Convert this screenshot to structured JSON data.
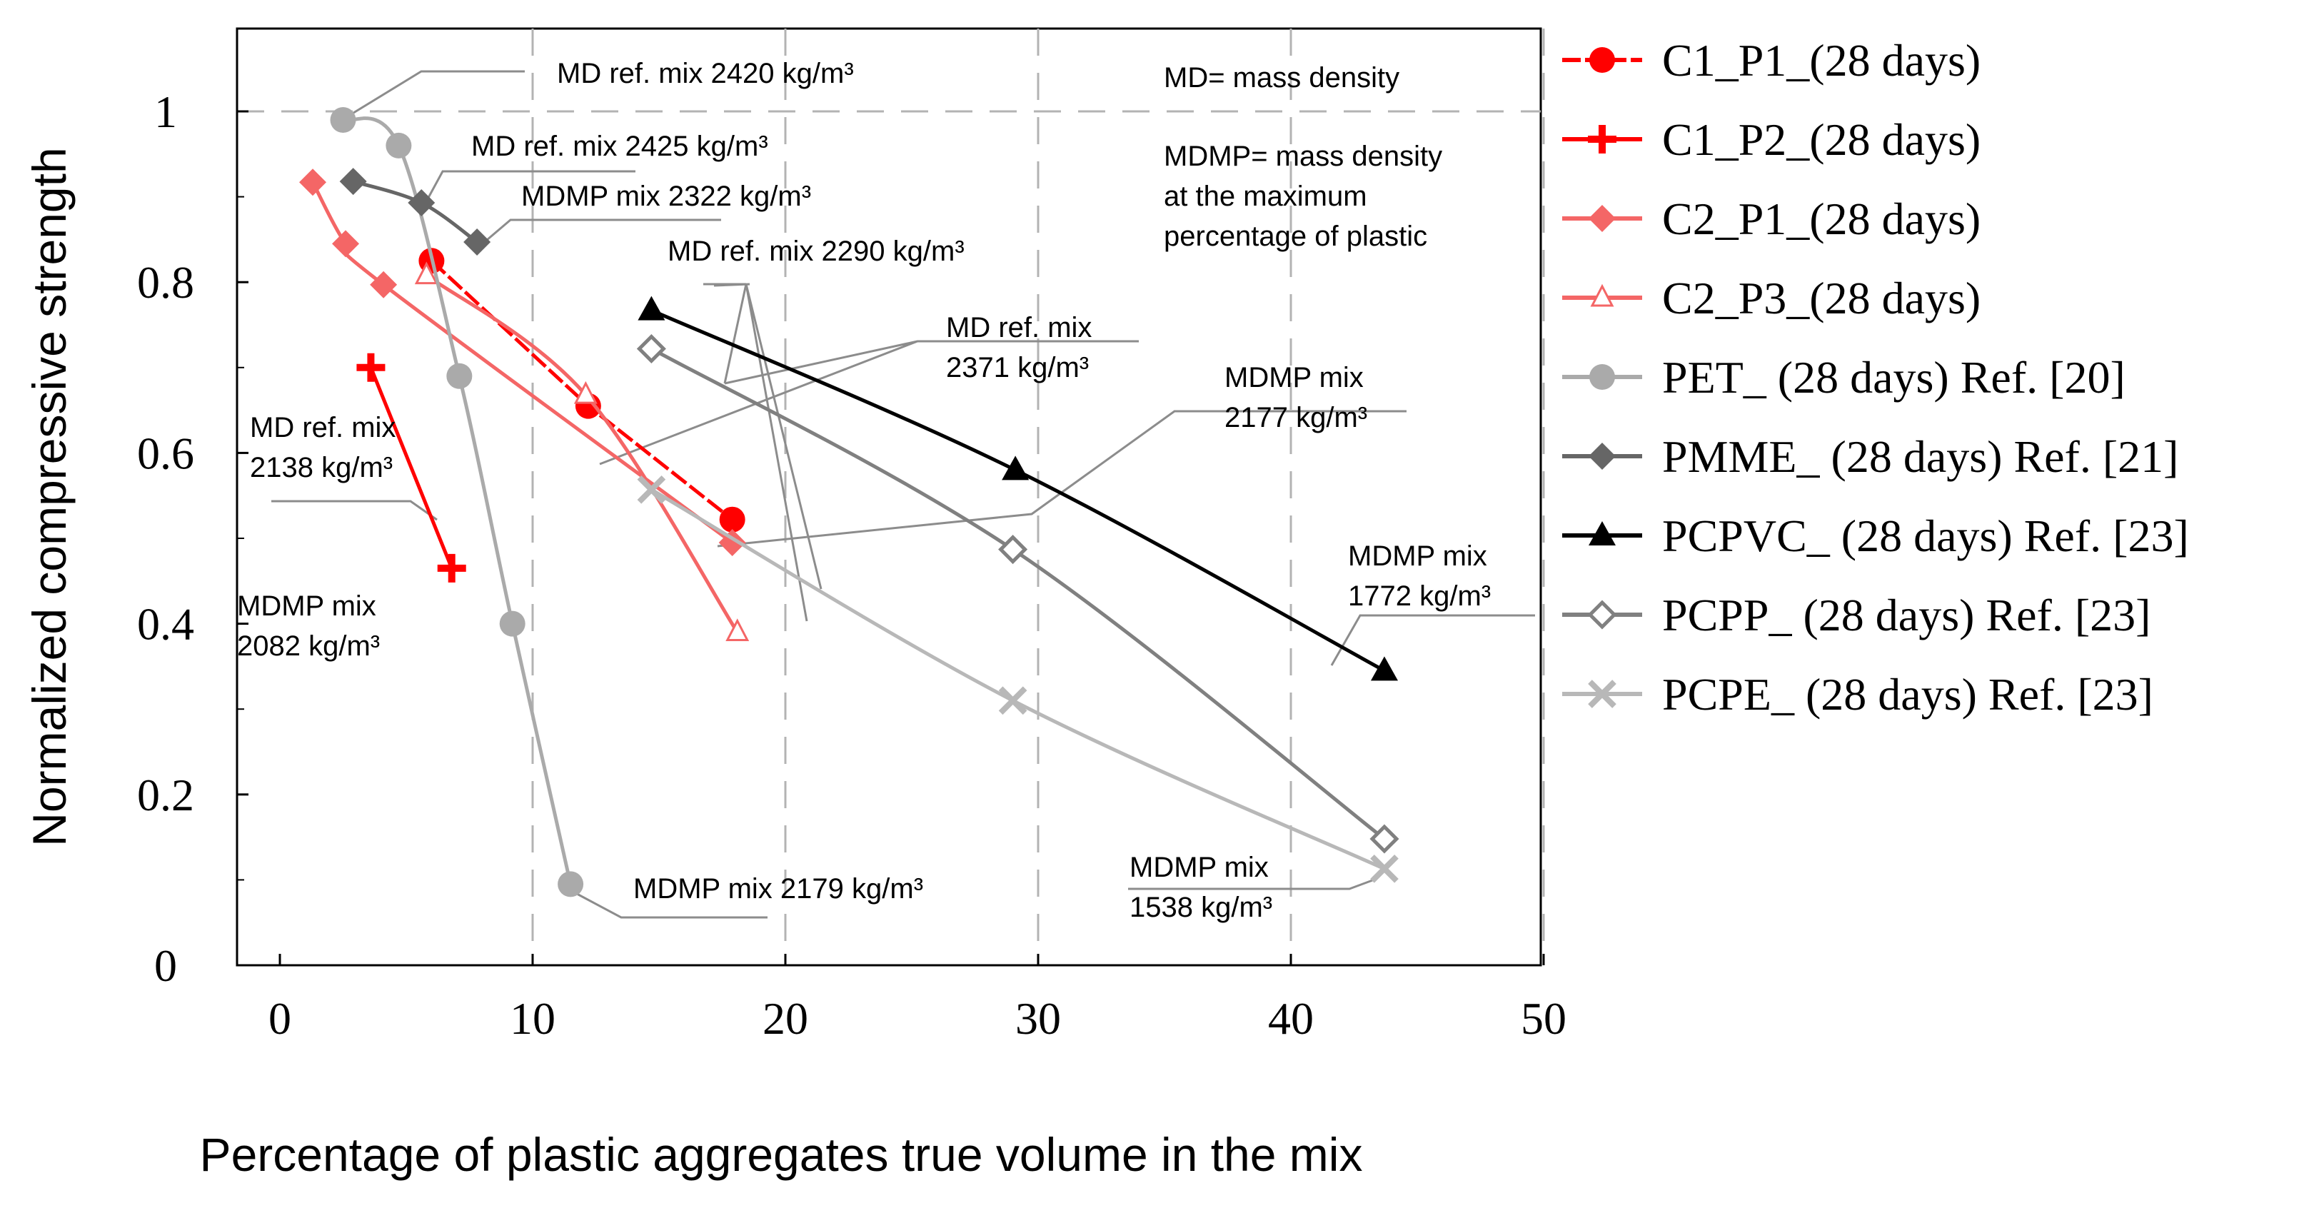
{
  "chart_data": {
    "type": "line",
    "title": "",
    "xlabel": "Percentage  of plastic aggregates true volume in the mix",
    "ylabel": "Normalized compressive strength",
    "xlim": [
      -2,
      50
    ],
    "ylim": [
      0,
      1.1
    ],
    "x_ticks": [
      0,
      10,
      20,
      30,
      40,
      50
    ],
    "y_ticks": [
      0,
      0.2,
      0.4,
      0.6,
      0.8,
      1
    ],
    "x_tick_labels": [
      "0",
      "10",
      "20",
      "30",
      "40",
      "50"
    ],
    "y_tick_labels": [
      "0",
      "0.2",
      "0.4",
      "0.6",
      "0.8",
      "1"
    ],
    "grid": "dashed vertical lines at each x tick and a dashed horizontal line at y = 1",
    "legend_position": "right, outside plot",
    "series": [
      {
        "name": "C1_P1_(28 days)",
        "color": "#ff0000",
        "marker": "circle",
        "dashed": true,
        "curve": "straight",
        "x": [
          6,
          12.2,
          17.9
        ],
        "y": [
          0.825,
          0.655,
          0.522
        ]
      },
      {
        "name": "C1_P2_(28 days)",
        "color": "#ff0000",
        "marker": "plus",
        "dashed": false,
        "curve": "straight",
        "x": [
          3.6,
          6.8
        ],
        "y": [
          0.7,
          0.465
        ]
      },
      {
        "name": "C2_P1_(28 days)",
        "color": "#f46666",
        "marker": "diamond",
        "dashed": false,
        "curve": "smooth",
        "x": [
          1.3,
          2.6,
          4.1,
          17.9
        ],
        "y": [
          0.917,
          0.845,
          0.797,
          0.495
        ]
      },
      {
        "name": "C2_P3_(28 days)",
        "color": "#f46666",
        "marker": "triangle-open",
        "dashed": false,
        "curve": "smooth",
        "x": [
          5.8,
          12.1,
          18.1
        ],
        "y": [
          0.808,
          0.668,
          0.39
        ]
      },
      {
        "name": "PET_ (28 days) Ref. [20]",
        "color": "#aaaaaa",
        "marker": "circle",
        "dashed": false,
        "curve": "smooth",
        "x": [
          2.5,
          4.7,
          7.1,
          9.2,
          11.5
        ],
        "y": [
          0.99,
          0.96,
          0.69,
          0.4,
          0.095
        ]
      },
      {
        "name": "PMME_ (28 days) Ref. [21]",
        "color": "#666666",
        "marker": "diamond",
        "dashed": false,
        "curve": "smooth",
        "x": [
          2.9,
          5.6,
          7.8
        ],
        "y": [
          0.918,
          0.893,
          0.847
        ]
      },
      {
        "name": "PCPVC_ (28 days) Ref. [23]",
        "color": "#000000",
        "marker": "triangle",
        "dashed": false,
        "curve": "smooth",
        "x": [
          14.7,
          29.1,
          43.7
        ],
        "y": [
          0.767,
          0.58,
          0.345
        ]
      },
      {
        "name": "PCPP_ (28 days) Ref. [23]",
        "color": "#808080",
        "marker": "diamond-open",
        "dashed": false,
        "curve": "smooth",
        "x": [
          14.7,
          29,
          43.7
        ],
        "y": [
          0.722,
          0.487,
          0.148
        ]
      },
      {
        "name": "PCPE_ (28 days) Ref. [23]",
        "color": "#b8b8b8",
        "marker": "x",
        "dashed": false,
        "curve": "smooth",
        "x": [
          14.7,
          29,
          43.7
        ],
        "y": [
          0.557,
          0.31,
          0.113
        ]
      }
    ],
    "annotations": [
      {
        "id": "ref-2420",
        "lines": [
          "MD ref. mix 2420 kg/m³"
        ]
      },
      {
        "id": "ref-2425",
        "lines": [
          "MD ref. mix 2425 kg/m³"
        ]
      },
      {
        "id": "mdmp-2322",
        "lines": [
          "MDMP  mix 2322 kg/m³"
        ]
      },
      {
        "id": "ref-2290",
        "lines": [
          "MD ref. mix 2290 kg/m³"
        ]
      },
      {
        "id": "ref-2371",
        "lines": [
          "MD ref. mix",
          "2371 kg/m³"
        ]
      },
      {
        "id": "mdmp-2177",
        "lines": [
          "MDMP  mix",
          "2177 kg/m³"
        ]
      },
      {
        "id": "ref-2138",
        "lines": [
          "MD ref. mix",
          "2138 kg/m³"
        ]
      },
      {
        "id": "mdmp-2082",
        "lines": [
          "MDMP  mix",
          "2082 kg/m³"
        ]
      },
      {
        "id": "mdmp-2179",
        "lines": [
          "MDMP  mix 2179 kg/m³"
        ]
      },
      {
        "id": "mdmp-1772",
        "lines": [
          "MDMP  mix",
          "1772 kg/m³"
        ]
      },
      {
        "id": "mdmp-1538",
        "lines": [
          "MDMP  mix",
          "1538 kg/m³"
        ]
      },
      {
        "id": "md-def",
        "lines": [
          "MD= mass density"
        ]
      },
      {
        "id": "mdmp-def",
        "lines": [
          "MDMP= mass density",
          "at the maximum",
          "percentage of plastic"
        ]
      }
    ]
  }
}
